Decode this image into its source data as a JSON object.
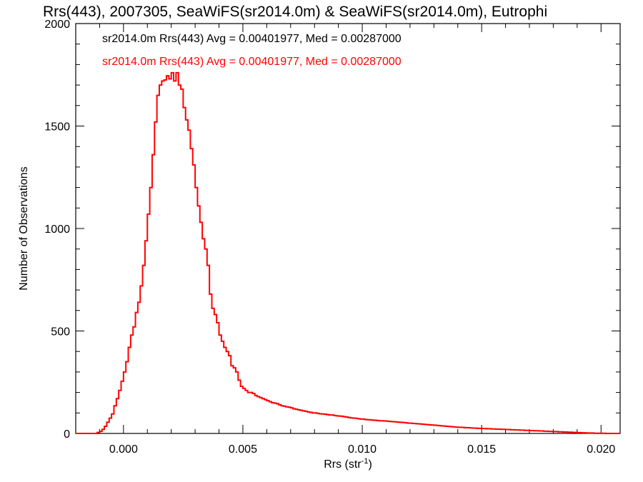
{
  "chart_data": {
    "type": "histogram",
    "title": "Rrs(443), 2007305, SeaWiFS(sr2014.0m) & SeaWiFS(sr2014.0m), Eutrophi",
    "xlabel": "Rrs (str",
    "xlabel_superscript": "-1",
    "xlabel_close": ")",
    "ylabel": "Number of Observations",
    "xlim": [
      -0.002,
      0.0208
    ],
    "ylim": [
      0,
      2000
    ],
    "xticks": [
      0.0,
      0.005,
      0.01,
      0.015,
      0.02
    ],
    "xtick_labels": [
      "0.000",
      "0.005",
      "0.010",
      "0.015",
      "0.020"
    ],
    "yticks": [
      0,
      500,
      1000,
      1500,
      2000
    ],
    "ytick_labels": [
      "0",
      "500",
      "1000",
      "1500",
      "2000"
    ],
    "bin_width": 0.0001,
    "bin_start": -0.002,
    "legend": [
      {
        "text": "sr2014.0m Rrs(443) Avg = 0.00401977, Med = 0.00287000",
        "color": "#000000"
      },
      {
        "text": "sr2014.0m Rrs(443) Avg = 0.00401977, Med = 0.00287000",
        "color": "#ff0000"
      }
    ],
    "series": [
      {
        "color": "#ff0000",
        "values": [
          0,
          0,
          0,
          0,
          0,
          0,
          0,
          0,
          0,
          5,
          10,
          20,
          35,
          55,
          75,
          95,
          135,
          170,
          210,
          255,
          300,
          350,
          420,
          480,
          520,
          590,
          640,
          720,
          820,
          940,
          1070,
          1200,
          1360,
          1520,
          1650,
          1700,
          1720,
          1725,
          1745,
          1730,
          1760,
          1720,
          1760,
          1700,
          1680,
          1590,
          1530,
          1480,
          1390,
          1310,
          1200,
          1110,
          1030,
          950,
          900,
          820,
          680,
          610,
          580,
          540,
          480,
          450,
          420,
          400,
          380,
          330,
          320,
          300,
          260,
          230,
          220,
          210,
          200,
          200,
          195,
          185,
          180,
          175,
          170,
          165,
          160,
          155,
          150,
          148,
          145,
          140,
          135,
          133,
          130,
          128,
          125,
          120,
          118,
          115,
          113,
          110,
          108,
          105,
          103,
          100,
          100,
          98,
          96,
          95,
          94,
          92,
          90,
          90,
          88,
          86,
          85,
          84,
          82,
          80,
          78,
          76,
          75,
          74,
          72,
          70,
          70,
          68,
          67,
          66,
          65,
          64,
          63,
          62,
          62,
          61,
          60,
          59,
          58,
          57,
          56,
          55,
          54,
          53,
          52,
          50,
          50,
          49,
          48,
          47,
          46,
          45,
          44,
          43,
          42,
          41,
          40,
          39,
          38,
          37,
          36,
          35,
          34,
          33,
          32,
          31,
          30,
          30,
          29,
          28,
          28,
          27,
          26,
          26,
          25,
          25,
          24,
          24,
          23,
          23,
          22,
          22,
          21,
          21,
          20,
          20,
          19,
          19,
          18,
          18,
          17,
          17,
          16,
          16,
          15,
          15,
          14,
          14,
          13,
          13,
          12,
          12,
          11,
          11,
          10,
          10,
          9,
          9,
          8,
          8,
          7,
          7,
          6,
          6,
          5,
          5,
          4,
          4,
          3,
          3,
          2,
          2,
          2,
          1,
          1,
          1,
          1,
          1,
          0,
          0,
          0,
          0,
          0,
          0
        ]
      }
    ]
  }
}
